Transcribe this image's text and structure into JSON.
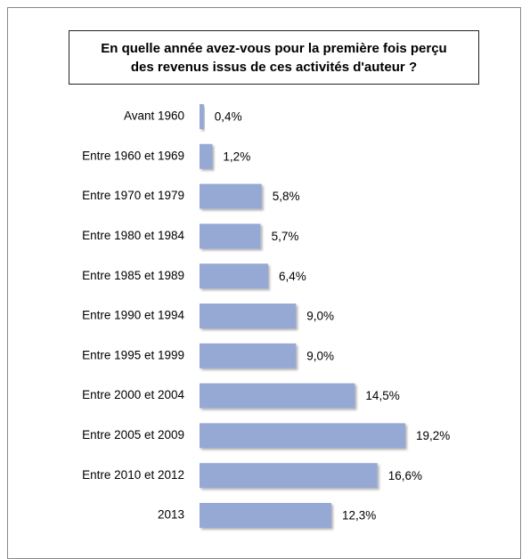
{
  "chart_data": {
    "type": "bar",
    "orientation": "horizontal",
    "title": "En quelle année avez-vous pour la première fois perçu des revenus issus de ces activités d'auteur ?",
    "categories": [
      "Avant 1960",
      "Entre 1960 et 1969",
      "Entre 1970 et 1979",
      "Entre 1980 et 1984",
      "Entre 1985 et 1989",
      "Entre 1990 et 1994",
      "Entre 1995 et 1999",
      "Entre 2000 et 2004",
      "Entre 2005 et 2009",
      "Entre 2010 et 2012",
      "2013"
    ],
    "values": [
      0.4,
      1.2,
      5.8,
      5.7,
      6.4,
      9.0,
      9.0,
      14.5,
      19.2,
      16.6,
      12.3
    ],
    "value_labels": [
      "0,4%",
      "1,2%",
      "5,8%",
      "5,7%",
      "6,4%",
      "9,0%",
      "9,0%",
      "14,5%",
      "19,2%",
      "16,6%",
      "12,3%"
    ],
    "color": "#95a9d4"
  }
}
